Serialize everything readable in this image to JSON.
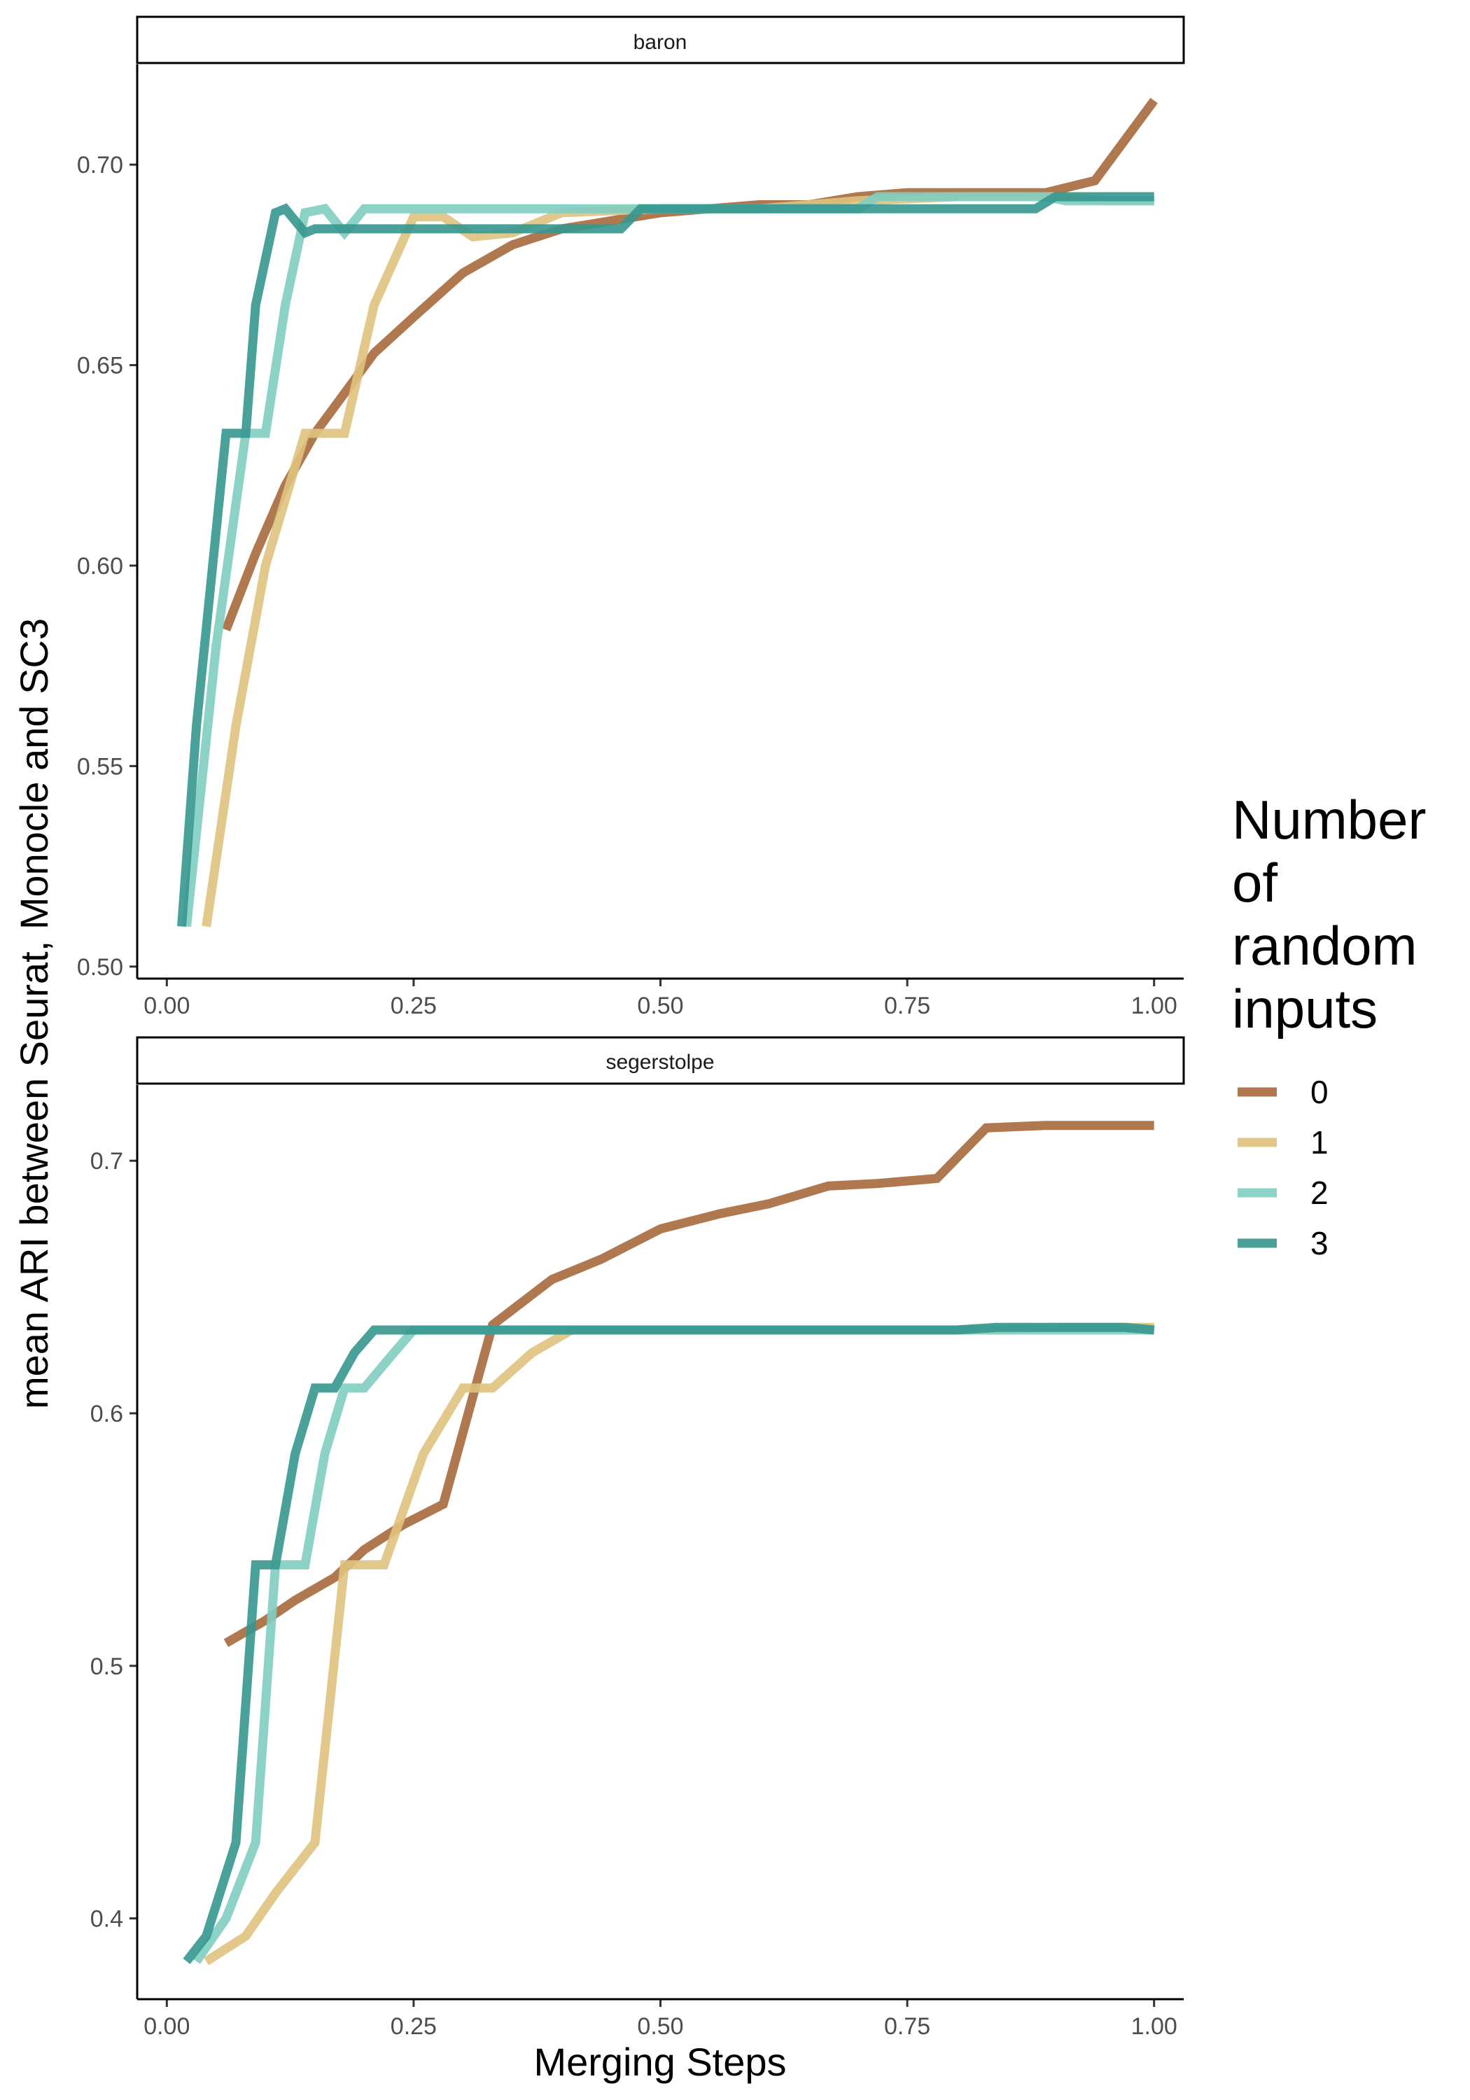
{
  "chart_data": [
    {
      "type": "line",
      "panel": "baron",
      "xlabel": "Merging Steps",
      "ylabel": "mean ARI between Seurat, Monocle and SC3",
      "xlim": [
        -0.03,
        1.03
      ],
      "ylim": [
        0.497,
        0.725
      ],
      "xticks": [
        "0.00",
        "0.25",
        "0.50",
        "0.75",
        "1.00"
      ],
      "yticks": [
        "0.50",
        "0.55",
        "0.60",
        "0.65",
        "0.70"
      ],
      "series": [
        {
          "name": "0",
          "color": "#a6693c",
          "points": [
            [
              0.06,
              0.584
            ],
            [
              0.09,
              0.603
            ],
            [
              0.12,
              0.62
            ],
            [
              0.15,
              0.633
            ],
            [
              0.18,
              0.643
            ],
            [
              0.21,
              0.653
            ],
            [
              0.25,
              0.662
            ],
            [
              0.3,
              0.673
            ],
            [
              0.35,
              0.68
            ],
            [
              0.4,
              0.684
            ],
            [
              0.45,
              0.686
            ],
            [
              0.5,
              0.688
            ],
            [
              0.55,
              0.689
            ],
            [
              0.6,
              0.69
            ],
            [
              0.65,
              0.69
            ],
            [
              0.7,
              0.692
            ],
            [
              0.75,
              0.693
            ],
            [
              0.8,
              0.693
            ],
            [
              0.89,
              0.693
            ],
            [
              0.94,
              0.696
            ],
            [
              1.0,
              0.716
            ]
          ]
        },
        {
          "name": "1",
          "color": "#dfc27d",
          "points": [
            [
              0.04,
              0.51
            ],
            [
              0.07,
              0.56
            ],
            [
              0.1,
              0.6
            ],
            [
              0.14,
              0.633
            ],
            [
              0.18,
              0.633
            ],
            [
              0.21,
              0.665
            ],
            [
              0.25,
              0.687
            ],
            [
              0.28,
              0.687
            ],
            [
              0.31,
              0.682
            ],
            [
              0.35,
              0.683
            ],
            [
              0.4,
              0.688
            ],
            [
              0.5,
              0.689
            ],
            [
              0.6,
              0.689
            ],
            [
              0.7,
              0.691
            ],
            [
              0.8,
              0.692
            ],
            [
              0.9,
              0.692
            ],
            [
              0.95,
              0.691
            ],
            [
              1.0,
              0.691
            ]
          ]
        },
        {
          "name": "2",
          "color": "#80cdc1",
          "points": [
            [
              0.02,
              0.51
            ],
            [
              0.05,
              0.58
            ],
            [
              0.08,
              0.633
            ],
            [
              0.1,
              0.633
            ],
            [
              0.12,
              0.665
            ],
            [
              0.14,
              0.688
            ],
            [
              0.16,
              0.689
            ],
            [
              0.18,
              0.683
            ],
            [
              0.2,
              0.689
            ],
            [
              0.3,
              0.689
            ],
            [
              0.5,
              0.689
            ],
            [
              0.6,
              0.689
            ],
            [
              0.7,
              0.689
            ],
            [
              0.72,
              0.692
            ],
            [
              0.89,
              0.692
            ],
            [
              0.91,
              0.691
            ],
            [
              1.0,
              0.691
            ]
          ]
        },
        {
          "name": "3",
          "color": "#35978f",
          "points": [
            [
              0.015,
              0.51
            ],
            [
              0.03,
              0.56
            ],
            [
              0.06,
              0.633
            ],
            [
              0.08,
              0.633
            ],
            [
              0.09,
              0.665
            ],
            [
              0.11,
              0.688
            ],
            [
              0.12,
              0.689
            ],
            [
              0.14,
              0.683
            ],
            [
              0.15,
              0.684
            ],
            [
              0.2,
              0.684
            ],
            [
              0.3,
              0.684
            ],
            [
              0.46,
              0.684
            ],
            [
              0.48,
              0.689
            ],
            [
              0.88,
              0.689
            ],
            [
              0.9,
              0.692
            ],
            [
              1.0,
              0.692
            ]
          ]
        }
      ]
    },
    {
      "type": "line",
      "panel": "segerstolpe",
      "xlabel": "Merging Steps",
      "ylabel": "mean ARI between Seurat, Monocle and SC3",
      "xlim": [
        -0.03,
        1.03
      ],
      "ylim": [
        0.368,
        0.73
      ],
      "xticks": [
        "0.00",
        "0.25",
        "0.50",
        "0.75",
        "1.00"
      ],
      "yticks": [
        "0.4",
        "0.5",
        "0.6",
        "0.7"
      ],
      "series": [
        {
          "name": "0",
          "color": "#a6693c",
          "points": [
            [
              0.06,
              0.509
            ],
            [
              0.1,
              0.518
            ],
            [
              0.13,
              0.526
            ],
            [
              0.17,
              0.535
            ],
            [
              0.2,
              0.546
            ],
            [
              0.24,
              0.556
            ],
            [
              0.28,
              0.564
            ],
            [
              0.33,
              0.635
            ],
            [
              0.39,
              0.653
            ],
            [
              0.44,
              0.661
            ],
            [
              0.5,
              0.673
            ],
            [
              0.56,
              0.679
            ],
            [
              0.61,
              0.683
            ],
            [
              0.67,
              0.69
            ],
            [
              0.72,
              0.691
            ],
            [
              0.78,
              0.693
            ],
            [
              0.83,
              0.713
            ],
            [
              0.89,
              0.714
            ],
            [
              0.94,
              0.714
            ],
            [
              1.0,
              0.714
            ]
          ]
        },
        {
          "name": "1",
          "color": "#dfc27d",
          "points": [
            [
              0.04,
              0.383
            ],
            [
              0.08,
              0.393
            ],
            [
              0.11,
              0.41
            ],
            [
              0.15,
              0.43
            ],
            [
              0.18,
              0.54
            ],
            [
              0.22,
              0.54
            ],
            [
              0.26,
              0.584
            ],
            [
              0.3,
              0.61
            ],
            [
              0.33,
              0.61
            ],
            [
              0.37,
              0.624
            ],
            [
              0.41,
              0.633
            ],
            [
              0.5,
              0.633
            ],
            [
              0.6,
              0.633
            ],
            [
              0.7,
              0.633
            ],
            [
              0.8,
              0.633
            ],
            [
              0.9,
              0.634
            ],
            [
              1.0,
              0.634
            ]
          ]
        },
        {
          "name": "2",
          "color": "#80cdc1",
          "points": [
            [
              0.03,
              0.383
            ],
            [
              0.06,
              0.4
            ],
            [
              0.09,
              0.43
            ],
            [
              0.11,
              0.54
            ],
            [
              0.14,
              0.54
            ],
            [
              0.16,
              0.584
            ],
            [
              0.18,
              0.61
            ],
            [
              0.2,
              0.61
            ],
            [
              0.23,
              0.624
            ],
            [
              0.25,
              0.633
            ],
            [
              0.4,
              0.633
            ],
            [
              0.6,
              0.633
            ],
            [
              0.8,
              0.633
            ],
            [
              1.0,
              0.633
            ]
          ]
        },
        {
          "name": "3",
          "color": "#35978f",
          "points": [
            [
              0.02,
              0.383
            ],
            [
              0.04,
              0.393
            ],
            [
              0.07,
              0.43
            ],
            [
              0.09,
              0.54
            ],
            [
              0.11,
              0.54
            ],
            [
              0.13,
              0.584
            ],
            [
              0.15,
              0.61
            ],
            [
              0.17,
              0.61
            ],
            [
              0.19,
              0.624
            ],
            [
              0.21,
              0.633
            ],
            [
              0.3,
              0.633
            ],
            [
              0.5,
              0.633
            ],
            [
              0.7,
              0.633
            ],
            [
              0.8,
              0.633
            ],
            [
              0.84,
              0.634
            ],
            [
              0.9,
              0.634
            ],
            [
              0.96,
              0.634
            ],
            [
              0.97,
              0.634
            ],
            [
              1.0,
              0.633
            ]
          ]
        }
      ]
    }
  ],
  "legend": {
    "title_lines": [
      "Number",
      "of",
      "random",
      "inputs"
    ],
    "items": [
      {
        "label": "0",
        "color": "#a6693c"
      },
      {
        "label": "1",
        "color": "#dfc27d"
      },
      {
        "label": "2",
        "color": "#80cdc1"
      },
      {
        "label": "3",
        "color": "#35978f"
      }
    ]
  }
}
